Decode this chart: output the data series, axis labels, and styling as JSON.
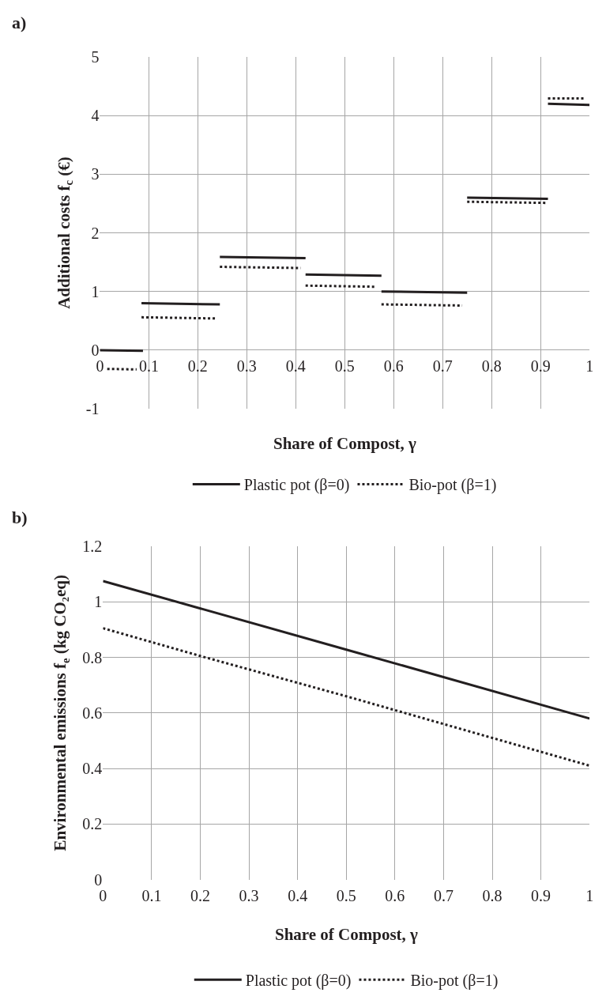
{
  "chart_data": [
    {
      "type": "line",
      "title": "a)",
      "xlabel": "Share of Compost, γ",
      "ylabel": "Additional costs f$_{c}$ (€)",
      "xlim": [
        0,
        1
      ],
      "xticks": [
        0,
        0.1,
        0.2,
        0.3,
        0.4,
        0.5,
        0.6,
        0.7,
        0.8,
        0.9,
        1
      ],
      "ylim": [
        -1,
        5
      ],
      "yticks": [
        -1,
        0,
        1,
        2,
        3,
        4,
        5
      ],
      "grid": true,
      "legend": "bottom",
      "series": [
        {
          "name": "Plastic pot (β=0)",
          "color": "#231f20",
          "line_style": "solid",
          "x": [
            0,
            0.088,
            null,
            0.085,
            0.245,
            null,
            0.245,
            0.42,
            null,
            0.42,
            0.575,
            null,
            0.575,
            0.75,
            null,
            0.75,
            0.915,
            null,
            0.915,
            1
          ],
          "values": [
            0,
            -0.01,
            null,
            0.8,
            0.78,
            null,
            1.59,
            1.57,
            null,
            1.29,
            1.27,
            null,
            1.0,
            0.98,
            null,
            2.6,
            2.58,
            null,
            4.2,
            4.18
          ]
        },
        {
          "name": "Bio-pot (β=1)",
          "color": "#231f20",
          "line_style": "dotted",
          "x": [
            0.015,
            0.075,
            null,
            0.085,
            0.235,
            null,
            0.245,
            0.41,
            null,
            0.42,
            0.565,
            null,
            0.575,
            0.74,
            null,
            0.75,
            0.91,
            null,
            0.915,
            0.99
          ],
          "values": [
            -0.32,
            -0.33,
            null,
            0.56,
            0.54,
            null,
            1.42,
            1.4,
            null,
            1.1,
            1.08,
            null,
            0.78,
            0.76,
            null,
            2.53,
            2.51,
            null,
            4.29,
            4.29
          ]
        }
      ]
    },
    {
      "type": "line",
      "title": "b)",
      "xlabel": "Share of Compost, γ",
      "ylabel": "Environmental emissions f$_{e}$ (kg CO₂eq)",
      "xlim": [
        0,
        1
      ],
      "xticks": [
        0,
        0.1,
        0.2,
        0.3,
        0.4,
        0.5,
        0.6,
        0.7,
        0.8,
        0.9,
        1
      ],
      "ylim": [
        0,
        1.2
      ],
      "yticks": [
        0,
        0.2,
        0.4,
        0.6,
        0.8,
        1,
        1.2
      ],
      "grid": true,
      "legend": "bottom",
      "series": [
        {
          "name": "Plastic pot (β=0)",
          "color": "#231f20",
          "line_style": "solid",
          "x": [
            0,
            0.5,
            1
          ],
          "values": [
            1.075,
            0.828,
            0.58
          ]
        },
        {
          "name": "Bio-pot (β=1)",
          "color": "#231f20",
          "line_style": "dotted",
          "x": [
            0,
            0.2,
            0.5,
            0.6,
            1
          ],
          "values": [
            0.905,
            0.805,
            0.66,
            0.61,
            0.41
          ]
        }
      ]
    }
  ]
}
